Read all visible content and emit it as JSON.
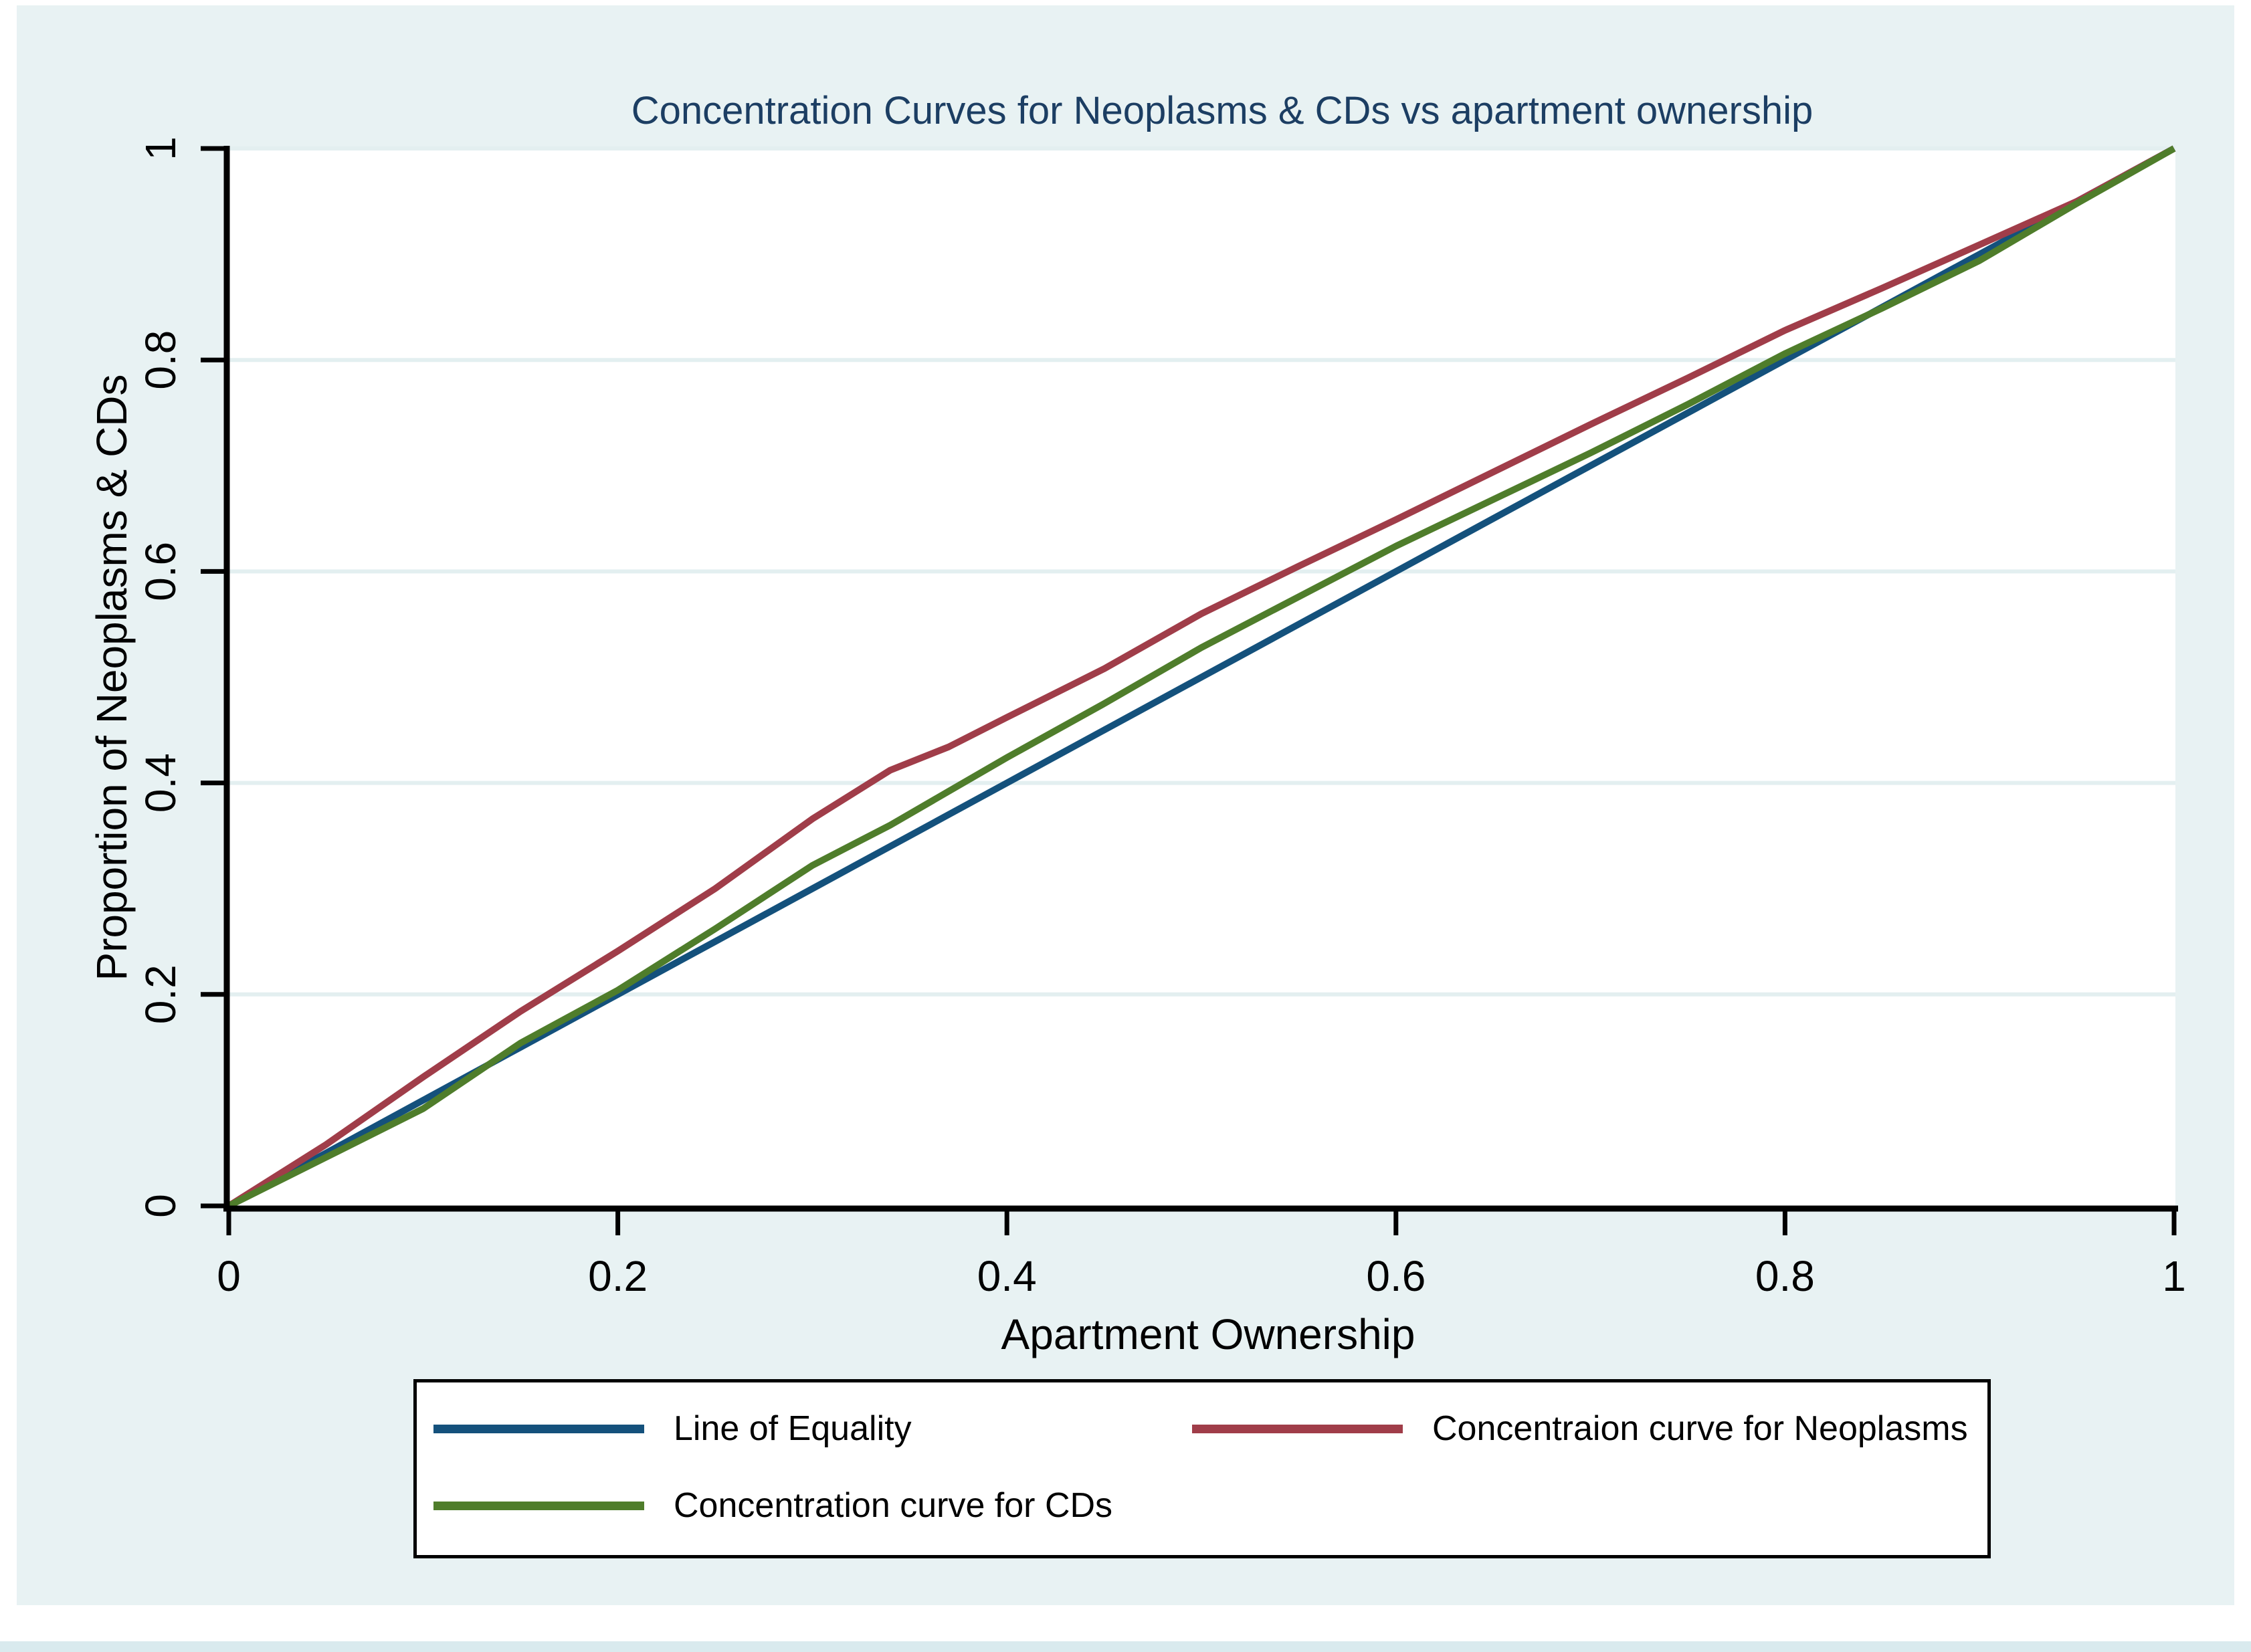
{
  "figure": {
    "title": "Concentration Curves for Neoplasms & CDs vs apartment ownership",
    "title_color": "#1c3e63",
    "background_color": "#e8f2f3",
    "plot_background": "#ffffff",
    "gridline_color": "#e3eff0"
  },
  "chart_data": {
    "type": "line",
    "title": "Concentration Curves for Neoplasms & CDs vs apartment ownership",
    "xlabel": "Apartment Ownership",
    "ylabel": "Proportion of Neoplasms & CDs",
    "xlim": [
      0,
      1
    ],
    "ylim": [
      0,
      1
    ],
    "grid": "horizontal gridlines at labeled y ticks",
    "legend_position": "bottom, boxed, two columns",
    "xticks": {
      "values": [
        0,
        0.2,
        0.4,
        0.6,
        0.8,
        1
      ],
      "labels": [
        "0",
        "0.2",
        "0.4",
        "0.6",
        "0.8",
        "1"
      ]
    },
    "yticks": {
      "values": [
        0,
        0.2,
        0.4,
        0.6,
        0.8,
        1
      ],
      "labels": [
        "0",
        "0.2",
        "0.4",
        "0.6",
        "0.8",
        "1"
      ]
    },
    "x": [
      0,
      0.05,
      0.1,
      0.15,
      0.2,
      0.25,
      0.3,
      0.34,
      0.37,
      0.4,
      0.45,
      0.5,
      0.55,
      0.6,
      0.65,
      0.7,
      0.75,
      0.8,
      0.85,
      0.9,
      0.95,
      1
    ],
    "series": [
      {
        "name": "Line of Equality",
        "color": "#14517c",
        "values": [
          0,
          0.05,
          0.1,
          0.15,
          0.2,
          0.25,
          0.3,
          0.34,
          0.37,
          0.4,
          0.45,
          0.5,
          0.55,
          0.6,
          0.65,
          0.7,
          0.75,
          0.8,
          0.85,
          0.9,
          0.95,
          1
        ]
      },
      {
        "name": "Concentraion curve for Neoplasms",
        "color": "#a03d49",
        "values": [
          0,
          0.058,
          0.122,
          0.184,
          0.241,
          0.3,
          0.366,
          0.412,
          0.434,
          0.462,
          0.508,
          0.56,
          0.605,
          0.649,
          0.694,
          0.739,
          0.783,
          0.828,
          0.868,
          0.909,
          0.95,
          1
        ]
      },
      {
        "name": "Concentration curve for CDs",
        "color": "#4f7d2b",
        "values": [
          0,
          0.046,
          0.092,
          0.154,
          0.204,
          0.262,
          0.322,
          0.36,
          0.392,
          0.424,
          0.475,
          0.528,
          0.576,
          0.624,
          0.668,
          0.712,
          0.758,
          0.806,
          0.849,
          0.894,
          0.948,
          1
        ]
      }
    ]
  },
  "legend": {
    "items": [
      {
        "label": "Line of Equality"
      },
      {
        "label": "Concentraion curve for Neoplasms"
      },
      {
        "label": "Concentration curve for CDs"
      }
    ]
  }
}
